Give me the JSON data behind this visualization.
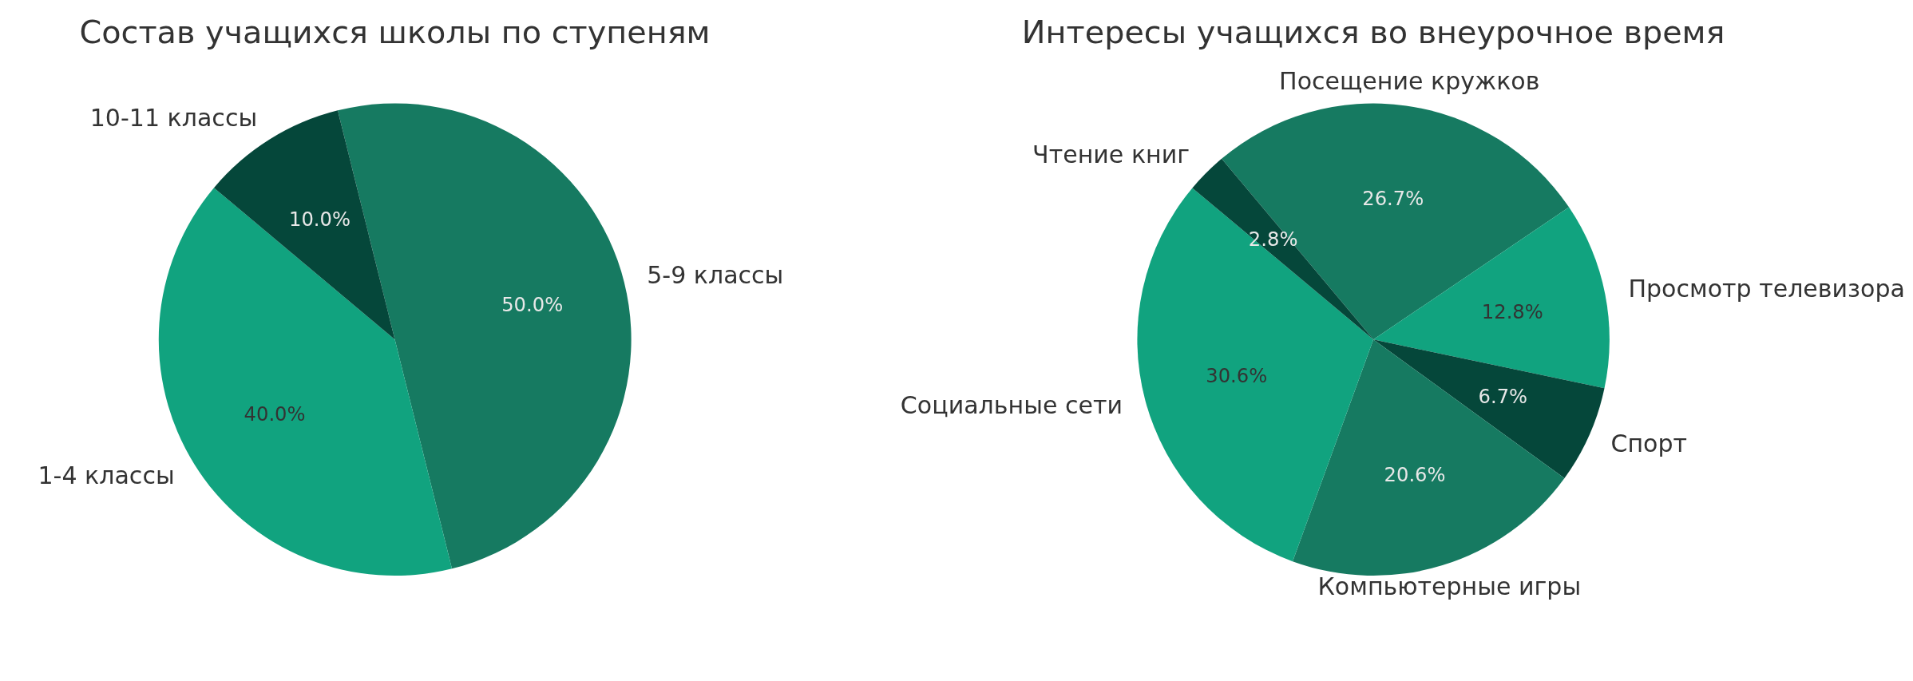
{
  "chart_data": [
    {
      "type": "pie",
      "title": "Состав учащихся школы по ступеням",
      "categories": [
        "5-9 классы",
        "1-4 классы",
        "10-11 классы"
      ],
      "values": [
        50,
        40,
        10
      ],
      "value_labels": [
        "50.0%",
        "40.0%",
        "10.0%"
      ],
      "colors": [
        "#167a61",
        "#11a37f",
        "#05473a"
      ]
    },
    {
      "type": "pie",
      "title": "Интересы учащихся во внеурочное время",
      "categories": [
        "Посещение кружков",
        "Просмотр телевизора",
        "Спорт",
        "Компьютерные игры",
        "Социальные сети",
        "Чтение книг"
      ],
      "values": [
        26.7,
        12.8,
        6.7,
        20.6,
        30.6,
        2.8
      ],
      "value_labels": [
        "26.7%",
        "12.8%",
        "6.7%",
        "20.6%",
        "30.6%",
        "2.8%"
      ],
      "colors": [
        "#167a61",
        "#11a37f",
        "#05473a",
        "#167a61",
        "#11a37f",
        "#05473a"
      ]
    }
  ]
}
